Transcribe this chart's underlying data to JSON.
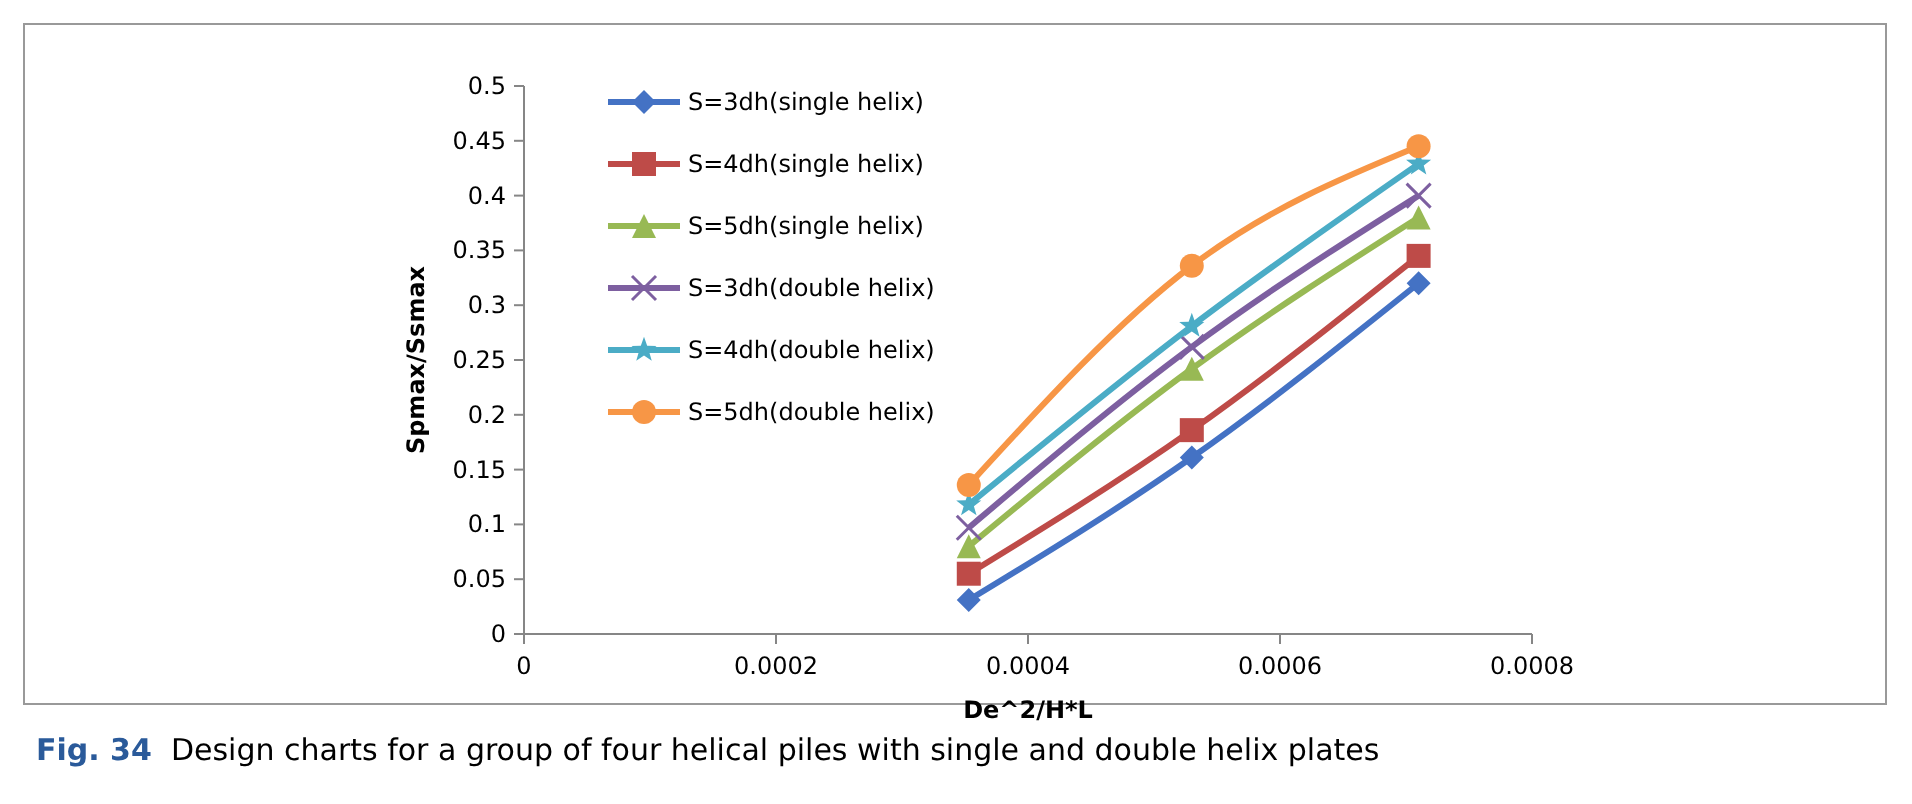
{
  "chart_data": {
    "type": "line",
    "xlabel": "De^2/H*L",
    "ylabel": "Spmax/Ssmax",
    "x": [
      0.000353,
      0.00053,
      0.00071
    ],
    "xlim": [
      0,
      0.0008
    ],
    "xticks": [
      0,
      0.0002,
      0.0004,
      0.0006,
      0.0008
    ],
    "ylim": [
      0,
      0.5
    ],
    "yticks": [
      0,
      0.05,
      0.1,
      0.15,
      0.2,
      0.25,
      0.3,
      0.35,
      0.4,
      0.45,
      0.5
    ],
    "grid": false,
    "legend": "top left",
    "annotations": [
      "Fig. 34  Design charts for a group of four helical piles with single and double helix plates"
    ],
    "series": [
      {
        "name": "S=3dh(single helix)",
        "color": "#4472c4",
        "marker": "diamond",
        "values": [
          0.031,
          0.161,
          0.32
        ]
      },
      {
        "name": "S=4dh(single helix)",
        "color": "#be4b48",
        "marker": "square",
        "values": [
          0.055,
          0.186,
          0.345
        ]
      },
      {
        "name": "S=5dh(single helix)",
        "color": "#98b954",
        "marker": "triangle",
        "values": [
          0.08,
          0.242,
          0.38
        ]
      },
      {
        "name": "S=3dh(double helix)",
        "color": "#7d5fa0",
        "marker": "cross",
        "values": [
          0.097,
          0.262,
          0.4
        ]
      },
      {
        "name": "S=4dh(double helix)",
        "color": "#4bacc6",
        "marker": "star",
        "values": [
          0.118,
          0.281,
          0.429
        ]
      },
      {
        "name": "S=5dh(double helix)",
        "color": "#f79646",
        "marker": "circle",
        "values": [
          0.136,
          0.336,
          0.445
        ]
      }
    ]
  }
}
